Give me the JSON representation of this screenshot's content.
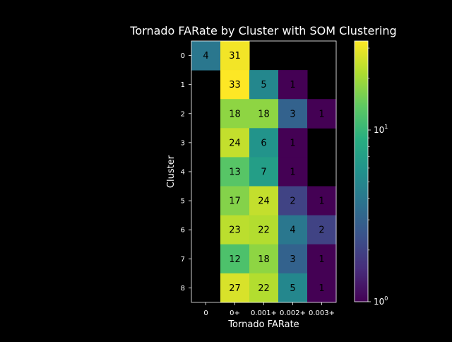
{
  "chart_data": {
    "type": "heatmap",
    "title": "Tornado FARate by Cluster with SOM Clustering",
    "xlabel": "Tornado FARate",
    "ylabel": "Cluster",
    "x_categories": [
      "0",
      "0+",
      "0.001+",
      "0.002+",
      "0.003+"
    ],
    "y_categories": [
      "0",
      "1",
      "2",
      "3",
      "4",
      "5",
      "6",
      "7",
      "8"
    ],
    "values": [
      [
        4,
        31,
        null,
        null,
        null
      ],
      [
        null,
        33,
        5,
        1,
        null
      ],
      [
        null,
        18,
        18,
        3,
        1
      ],
      [
        null,
        24,
        6,
        1,
        null
      ],
      [
        null,
        13,
        7,
        1,
        null
      ],
      [
        null,
        17,
        24,
        2,
        1
      ],
      [
        null,
        23,
        22,
        4,
        2
      ],
      [
        null,
        12,
        18,
        3,
        1
      ],
      [
        null,
        27,
        22,
        5,
        1
      ]
    ],
    "colorscale": "viridis",
    "color_scale_type": "log",
    "color_range": [
      1,
      33
    ],
    "colorbar_ticks": [
      "10^0",
      "10^1"
    ],
    "grid": false
  }
}
